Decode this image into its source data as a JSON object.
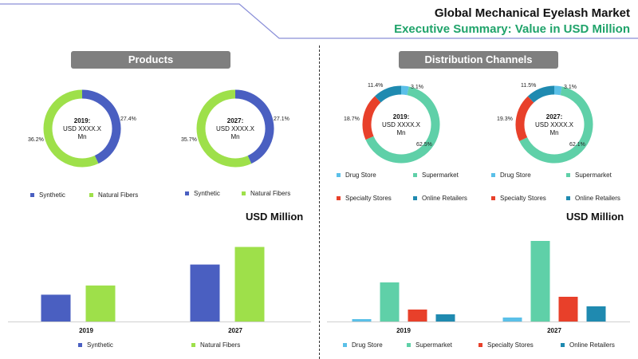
{
  "header": {
    "title": "Global Mechanical Eyelash Market",
    "subtitle": "Executive Summary: Value in USD Million"
  },
  "sections": {
    "products": "Products",
    "distribution": "Distribution Channels"
  },
  "colors": {
    "synthetic": "#4a5fc1",
    "natural": "#9ee04a",
    "drug_store": "#5bc0e8",
    "supermarket": "#5fd0a8",
    "specialty": "#e8402a",
    "online": "#1f8ab0",
    "pill": "#7f7f7f",
    "accent_green": "#1fa36a"
  },
  "usd_label": "USD Million",
  "chart_data": [
    {
      "type": "pie",
      "id": "products-2019",
      "center_year": "2019:",
      "center_text": "USD XXXX.X",
      "center_unit": "Mn",
      "labels": [
        "Synthetic",
        "Natural Fibers"
      ],
      "values": [
        27.4,
        36.2
      ],
      "value_labels": [
        "27.4%",
        "36.2%"
      ]
    },
    {
      "type": "pie",
      "id": "products-2027",
      "center_year": "2027:",
      "center_text": "USD XXXX.X",
      "center_unit": "Mn",
      "labels": [
        "Synthetic",
        "Natural Fibers"
      ],
      "values": [
        27.1,
        35.7
      ],
      "value_labels": [
        "27.1%",
        "35.7%"
      ]
    },
    {
      "type": "pie",
      "id": "distribution-2019",
      "center_year": "2019:",
      "center_text": "USD XXXX.X",
      "center_unit": "Mn",
      "labels": [
        "Drug Store",
        "Supermarket",
        "Specialty Stores",
        "Online Retailers"
      ],
      "values": [
        3.1,
        62.5,
        18.7,
        11.4
      ],
      "value_labels": [
        "3.1%",
        "62.5%",
        "18.7%",
        "11.4%"
      ]
    },
    {
      "type": "pie",
      "id": "distribution-2027",
      "center_year": "2027:",
      "center_text": "USD XXXX.X",
      "center_unit": "Mn",
      "labels": [
        "Drug Store",
        "Supermarket",
        "Specialty Stores",
        "Online Retailers"
      ],
      "values": [
        3.1,
        62.1,
        19.3,
        11.5
      ],
      "value_labels": [
        "3.1%",
        "62.1%",
        "19.3%",
        "11.5%"
      ]
    },
    {
      "type": "bar",
      "id": "products-bars",
      "categories": [
        "2019",
        "2027"
      ],
      "series": [
        {
          "name": "Synthetic",
          "values": [
            32,
            68
          ]
        },
        {
          "name": "Natural Fibers",
          "values": [
            43,
            89
          ]
        }
      ],
      "ylim": [
        0,
        100
      ]
    },
    {
      "type": "bar",
      "id": "distribution-bars",
      "categories": [
        "2019",
        "2027"
      ],
      "series": [
        {
          "name": "Drug Store",
          "values": [
            3,
            5
          ]
        },
        {
          "name": "Supermarket",
          "values": [
            49,
            101
          ]
        },
        {
          "name": "Specialty Stores",
          "values": [
            15,
            31
          ]
        },
        {
          "name": "Online Retailers",
          "values": [
            9,
            19
          ]
        }
      ],
      "ylim": [
        0,
        105
      ]
    }
  ],
  "legends": {
    "products": [
      "Synthetic",
      "Natural Fibers"
    ],
    "distribution": [
      "Drug Store",
      "Supermarket",
      "Specialty Stores",
      "Online Retailers"
    ]
  }
}
